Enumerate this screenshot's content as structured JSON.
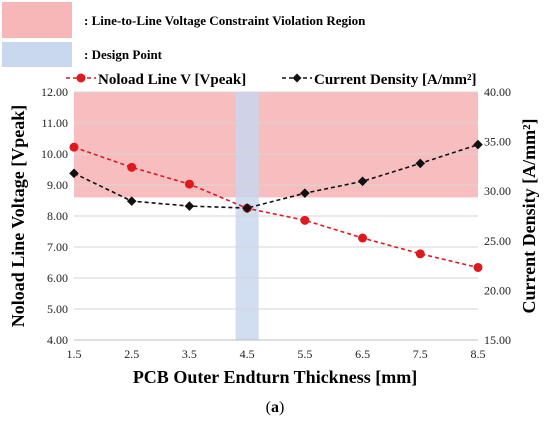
{
  "chart_data": {
    "type": "line",
    "title": "",
    "xlabel": "PCB Outer Endturn Thickness [mm]",
    "ylabel_left": "Noload Line Voltage [Vpeak]",
    "ylabel_right": "Current Density [A/mm²]",
    "x": [
      1.5,
      2.5,
      3.5,
      4.5,
      5.5,
      6.5,
      7.5,
      8.5
    ],
    "x_ticks": [
      "1.5",
      "2.5",
      "3.5",
      "4.5",
      "5.5",
      "6.5",
      "7.5",
      "8.5"
    ],
    "ylim_left": [
      4.0,
      12.0
    ],
    "ylim_right": [
      15.0,
      40.0
    ],
    "yticks_left": [
      "4.00",
      "5.00",
      "6.00",
      "7.00",
      "8.00",
      "9.00",
      "10.00",
      "11.00",
      "12.00"
    ],
    "yticks_right": [
      "15.00",
      "20.00",
      "25.00",
      "30.00",
      "35.00",
      "40.00"
    ],
    "series": [
      {
        "name": "Noload Line V [Vpeak]",
        "axis": "left",
        "color": "#e0191f",
        "marker": "circle",
        "values": [
          10.22,
          9.57,
          9.03,
          8.25,
          7.86,
          7.29,
          6.78,
          6.34
        ]
      },
      {
        "name": "Current Density [A/mm²]",
        "axis": "right",
        "color": "#111111",
        "marker": "diamond",
        "values": [
          31.8,
          29.0,
          28.5,
          28.3,
          29.8,
          31.0,
          32.8,
          34.7
        ]
      }
    ],
    "violation_region": {
      "label": ": Line-to-Line Voltage Constraint Violation Region",
      "y_from": 8.6,
      "y_to": 12.0,
      "color": "#f7b6b8"
    },
    "design_point": {
      "label": ": Design Point",
      "x_from": 4.3,
      "x_to": 4.7,
      "color": "#c9d7ef"
    },
    "caption": {
      "open": "(",
      "letter": "a",
      "close": ")"
    },
    "grid": true,
    "legend_position": "top"
  }
}
